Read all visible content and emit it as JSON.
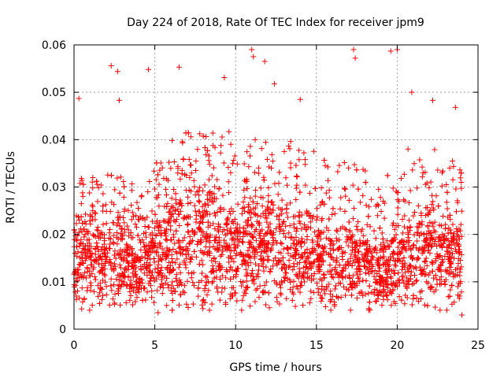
{
  "chart_data": {
    "type": "scatter",
    "title": "Day 224 of 2018, Rate Of TEC Index for receiver jpm9",
    "xlabel": "GPS time / hours",
    "ylabel": "ROTI / TECUs",
    "xlim": [
      0,
      25
    ],
    "ylim": [
      0,
      0.06
    ],
    "x_ticks": [
      0,
      5,
      10,
      15,
      20,
      25
    ],
    "x_tick_labels": [
      "0",
      "5",
      "10",
      "15",
      "20",
      "25"
    ],
    "y_ticks": [
      0,
      0.01,
      0.02,
      0.03,
      0.04,
      0.05,
      0.06
    ],
    "y_tick_labels": [
      "0",
      "0.01",
      "0.02",
      "0.03",
      "0.04",
      "0.05",
      "0.06"
    ],
    "grid": true,
    "marker": "plus",
    "marker_color": "#ff0000",
    "series": [
      {
        "name": "ROTI",
        "notable_points": [
          {
            "x": 0.3,
            "y": 0.0487
          },
          {
            "x": 2.3,
            "y": 0.0556
          },
          {
            "x": 2.7,
            "y": 0.0544
          },
          {
            "x": 2.8,
            "y": 0.0483
          },
          {
            "x": 4.6,
            "y": 0.0548
          },
          {
            "x": 6.5,
            "y": 0.0553
          },
          {
            "x": 9.3,
            "y": 0.0531
          },
          {
            "x": 11.0,
            "y": 0.059
          },
          {
            "x": 11.1,
            "y": 0.0575
          },
          {
            "x": 11.8,
            "y": 0.0565
          },
          {
            "x": 12.4,
            "y": 0.0518
          },
          {
            "x": 14.0,
            "y": 0.0485
          },
          {
            "x": 17.3,
            "y": 0.059
          },
          {
            "x": 17.4,
            "y": 0.0572
          },
          {
            "x": 19.6,
            "y": 0.0587
          },
          {
            "x": 20.0,
            "y": 0.059
          },
          {
            "x": 20.9,
            "y": 0.05
          },
          {
            "x": 22.2,
            "y": 0.0483
          },
          {
            "x": 23.6,
            "y": 0.0468
          },
          {
            "x": 5.2,
            "y": 0.0035
          },
          {
            "x": 24.0,
            "y": 0.003
          }
        ],
        "envelope": {
          "x": [
            0,
            1,
            2,
            3,
            4,
            5,
            6,
            7,
            8,
            9,
            10,
            11,
            12,
            13,
            14,
            15,
            16,
            17,
            18,
            19,
            20,
            21,
            22,
            23,
            24
          ],
          "low": [
            0.005,
            0.005,
            0.005,
            0.005,
            0.006,
            0.005,
            0.005,
            0.005,
            0.005,
            0.005,
            0.005,
            0.005,
            0.005,
            0.005,
            0.005,
            0.005,
            0.005,
            0.005,
            0.005,
            0.005,
            0.005,
            0.005,
            0.005,
            0.005,
            0.004
          ],
          "center": [
            0.015,
            0.015,
            0.015,
            0.015,
            0.013,
            0.016,
            0.018,
            0.019,
            0.019,
            0.018,
            0.018,
            0.018,
            0.017,
            0.017,
            0.016,
            0.015,
            0.014,
            0.014,
            0.014,
            0.012,
            0.014,
            0.016,
            0.017,
            0.016,
            0.015
          ],
          "high": [
            0.032,
            0.032,
            0.033,
            0.032,
            0.03,
            0.036,
            0.04,
            0.042,
            0.042,
            0.042,
            0.043,
            0.042,
            0.042,
            0.04,
            0.04,
            0.038,
            0.034,
            0.036,
            0.034,
            0.03,
            0.037,
            0.04,
            0.04,
            0.036,
            0.035
          ]
        },
        "n_points_approx": 3000
      }
    ]
  }
}
